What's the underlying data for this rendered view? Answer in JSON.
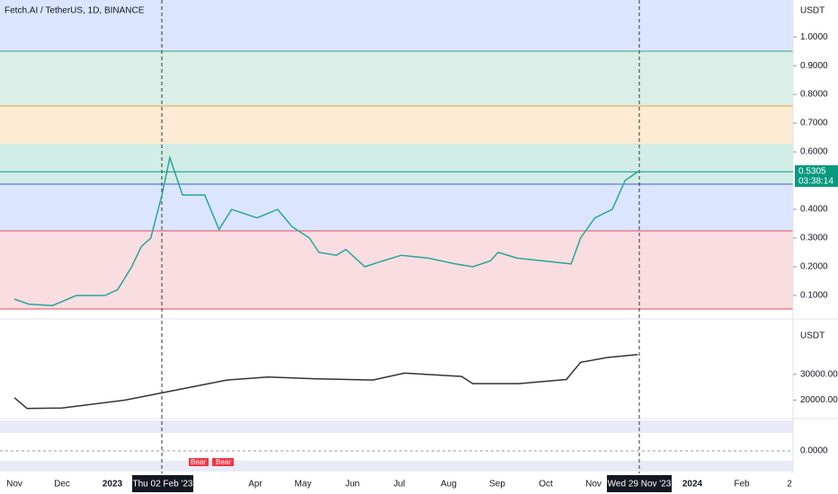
{
  "header": {
    "title": "Fetch.AI / TetherUS, 1D, BINANCE"
  },
  "price_pane": {
    "unit": "USDT",
    "ylim": [
      0,
      1.1286
    ],
    "yticks": [
      {
        "value": 1,
        "label": "1.0000"
      },
      {
        "value": 0.9,
        "label": "0.9000"
      },
      {
        "value": 0.8,
        "label": "0.8000"
      },
      {
        "value": 0.7,
        "label": "0.7000"
      },
      {
        "value": 0.6,
        "label": "0.6000"
      },
      {
        "value": 0.4,
        "label": "0.4000"
      },
      {
        "value": 0.3,
        "label": "0.3000"
      },
      {
        "value": 0.2,
        "label": "0.2000"
      },
      {
        "value": 0.1,
        "label": "0.1000"
      }
    ],
    "last_price": {
      "value": 0.5305,
      "label": "0.5305"
    },
    "countdown": "03:38:14",
    "dates": [
      "2022-11-01",
      "2022-11-10",
      "2022-11-25",
      "2022-12-10",
      "2022-12-28",
      "2023-01-05",
      "2023-01-14",
      "2023-01-20",
      "2023-01-26",
      "2023-02-02",
      "2023-02-07",
      "2023-02-15",
      "2023-03-01",
      "2023-03-10",
      "2023-03-18",
      "2023-04-03",
      "2023-04-16",
      "2023-04-25",
      "2023-05-06",
      "2023-05-12",
      "2023-05-23",
      "2023-05-29",
      "2023-06-10",
      "2023-06-21",
      "2023-07-03",
      "2023-07-20",
      "2023-08-06",
      "2023-08-17",
      "2023-08-28",
      "2023-09-02",
      "2023-09-14",
      "2023-10-01",
      "2023-10-18",
      "2023-10-24",
      "2023-11-02",
      "2023-11-13",
      "2023-11-21",
      "2023-11-29"
    ],
    "closes": [
      0.0875,
      0.07,
      0.065,
      0.1,
      0.1,
      0.12,
      0.2,
      0.27,
      0.3,
      0.45,
      0.58,
      0.45,
      0.45,
      0.33,
      0.4,
      0.37,
      0.4,
      0.34,
      0.3,
      0.25,
      0.24,
      0.26,
      0.2,
      0.22,
      0.24,
      0.23,
      0.21,
      0.2,
      0.22,
      0.25,
      0.23,
      0.22,
      0.21,
      0.3,
      0.37,
      0.4,
      0.5,
      0.5305
    ]
  },
  "second_pane": {
    "unit": "USDT",
    "ylim": [
      10000,
      47778
    ],
    "yticks": [
      {
        "value": 30000,
        "label": "30000.00"
      },
      {
        "value": 20000,
        "label": "20000.00"
      }
    ],
    "dates": [
      "2022-11-01",
      "2022-11-09",
      "2022-12-01",
      "2023-01-10",
      "2023-02-02",
      "2023-03-15",
      "2023-04-10",
      "2023-05-10",
      "2023-06-15",
      "2023-07-05",
      "2023-08-10",
      "2023-08-17",
      "2023-09-15",
      "2023-10-15",
      "2023-10-24",
      "2023-11-10",
      "2023-11-29"
    ],
    "values": [
      20900,
      16700,
      16900,
      20000,
      22800,
      27800,
      29000,
      28300,
      27800,
      30500,
      29200,
      26400,
      26400,
      28000,
      34700,
      36600,
      37700
    ]
  },
  "third_pane": {
    "yticks": [
      {
        "value": 0,
        "label": "0.0000"
      }
    ]
  },
  "indicator_labels": [
    "Bear",
    "Bear"
  ],
  "time_axis": {
    "labels": [
      "Nov",
      "Dec",
      "2023",
      "Apr",
      "May",
      "Jun",
      "Jul",
      "Aug",
      "Sep",
      "Oct",
      "Nov",
      "2024",
      "Feb",
      "2"
    ],
    "crosshair_left": "Thu 02 Feb '23",
    "crosshair_right": "Wed 29 Nov '23"
  }
}
